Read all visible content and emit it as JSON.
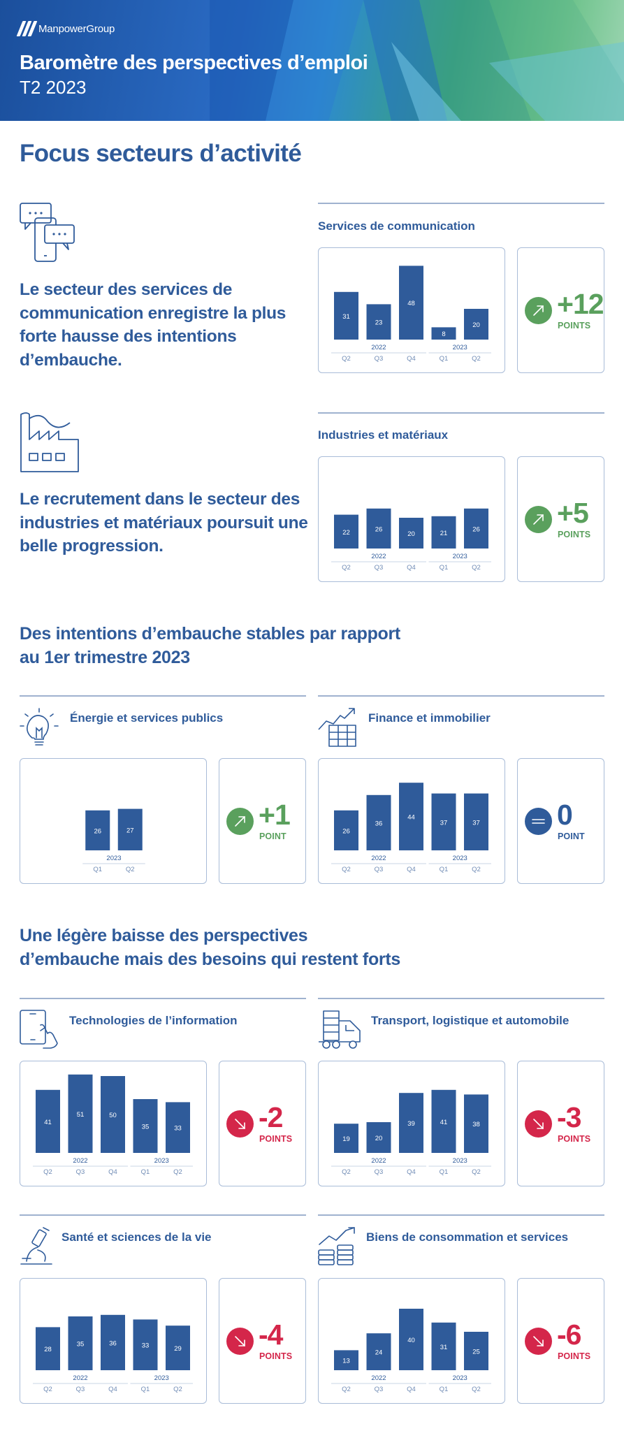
{
  "header": {
    "logo_text": "ManpowerGroup",
    "title": "Baromètre des perspectives d’emploi",
    "subtitle": "T2 2023"
  },
  "section1": {
    "title": "Focus secteurs d’activité"
  },
  "section2": {
    "title": "Des intentions d’embauche stables par rapport au 1er trimestre 2023"
  },
  "section3": {
    "title": "Une légère baisse des perspectives d’embauche mais des besoins qui restent forts"
  },
  "colors": {
    "brand_blue": "#2f5b9a",
    "bar_blue": "#2f5b9a",
    "up_green": "#5aa05d",
    "neutral_blue": "#2f5b9a",
    "down_red": "#d4264a"
  },
  "sectors": [
    {
      "name": "Services de communication",
      "icon": "chat-phone-icon",
      "statement": "Le secteur des services de communication enregistre la plus forte hausse des intentions d’embauche.",
      "delta": "+12",
      "unit": "POINTS",
      "trend": "up"
    },
    {
      "name": "Industries et matériaux",
      "icon": "factory-icon",
      "statement": "Le recrutement dans le secteur des industries et matériaux poursuit une belle progression.",
      "delta": "+5",
      "unit": "POINTS",
      "trend": "up"
    },
    {
      "name": "Énergie et services publics",
      "icon": "lightbulb-icon",
      "delta": "+1",
      "unit": "POINT",
      "trend": "up"
    },
    {
      "name": "Finance et immobilier",
      "icon": "finance-chart-icon",
      "delta": "0",
      "unit": "POINT",
      "trend": "flat"
    },
    {
      "name": "Technologies de l’information",
      "icon": "tablet-hand-icon",
      "delta": "-2",
      "unit": "POINTS",
      "trend": "down"
    },
    {
      "name": "Transport, logistique et automobile",
      "icon": "truck-icon",
      "delta": "-3",
      "unit": "POINTS",
      "trend": "down"
    },
    {
      "name": "Santé et sciences de la vie",
      "icon": "microscope-icon",
      "delta": "-4",
      "unit": "POINTS",
      "trend": "down"
    },
    {
      "name": "Biens de consommation et services",
      "icon": "products-chart-icon",
      "delta": "-6",
      "unit": "POINTS",
      "trend": "down"
    }
  ],
  "chart_data": [
    {
      "type": "bar",
      "title": "Services de communication",
      "categories": [
        "Q2",
        "Q3",
        "Q4",
        "Q1",
        "Q2"
      ],
      "years": [
        {
          "label": "2022",
          "from": 0,
          "to": 2
        },
        {
          "label": "2023",
          "from": 3,
          "to": 4
        }
      ],
      "values": [
        31,
        23,
        48,
        8,
        20
      ]
    },
    {
      "type": "bar",
      "title": "Industries et matériaux",
      "categories": [
        "Q2",
        "Q3",
        "Q4",
        "Q1",
        "Q2"
      ],
      "years": [
        {
          "label": "2022",
          "from": 0,
          "to": 2
        },
        {
          "label": "2023",
          "from": 3,
          "to": 4
        }
      ],
      "values": [
        22,
        26,
        20,
        21,
        26
      ]
    },
    {
      "type": "bar",
      "title": "Énergie et services publics",
      "categories": [
        "Q1",
        "Q2"
      ],
      "years": [
        {
          "label": "2023",
          "from": 0,
          "to": 1
        }
      ],
      "values": [
        26,
        27
      ]
    },
    {
      "type": "bar",
      "title": "Finance et immobilier",
      "categories": [
        "Q2",
        "Q3",
        "Q4",
        "Q1",
        "Q2"
      ],
      "years": [
        {
          "label": "2022",
          "from": 0,
          "to": 2
        },
        {
          "label": "2023",
          "from": 3,
          "to": 4
        }
      ],
      "values": [
        26,
        36,
        44,
        37,
        37
      ]
    },
    {
      "type": "bar",
      "title": "Technologies de l’information",
      "categories": [
        "Q2",
        "Q3",
        "Q4",
        "Q1",
        "Q2"
      ],
      "years": [
        {
          "label": "2022",
          "from": 0,
          "to": 2
        },
        {
          "label": "2023",
          "from": 3,
          "to": 4
        }
      ],
      "values": [
        41,
        51,
        50,
        35,
        33
      ]
    },
    {
      "type": "bar",
      "title": "Transport, logistique et automobile",
      "categories": [
        "Q2",
        "Q3",
        "Q4",
        "Q1",
        "Q2"
      ],
      "years": [
        {
          "label": "2022",
          "from": 0,
          "to": 2
        },
        {
          "label": "2023",
          "from": 3,
          "to": 4
        }
      ],
      "values": [
        19,
        20,
        39,
        41,
        38
      ]
    },
    {
      "type": "bar",
      "title": "Santé et sciences de la vie",
      "categories": [
        "Q2",
        "Q3",
        "Q4",
        "Q1",
        "Q2"
      ],
      "years": [
        {
          "label": "2022",
          "from": 0,
          "to": 2
        },
        {
          "label": "2023",
          "from": 3,
          "to": 4
        }
      ],
      "values": [
        28,
        35,
        36,
        33,
        29
      ]
    },
    {
      "type": "bar",
      "title": "Biens de consommation et services",
      "categories": [
        "Q2",
        "Q3",
        "Q4",
        "Q1",
        "Q2"
      ],
      "years": [
        {
          "label": "2022",
          "from": 0,
          "to": 2
        },
        {
          "label": "2023",
          "from": 3,
          "to": 4
        }
      ],
      "values": [
        13,
        24,
        40,
        31,
        25
      ]
    }
  ]
}
